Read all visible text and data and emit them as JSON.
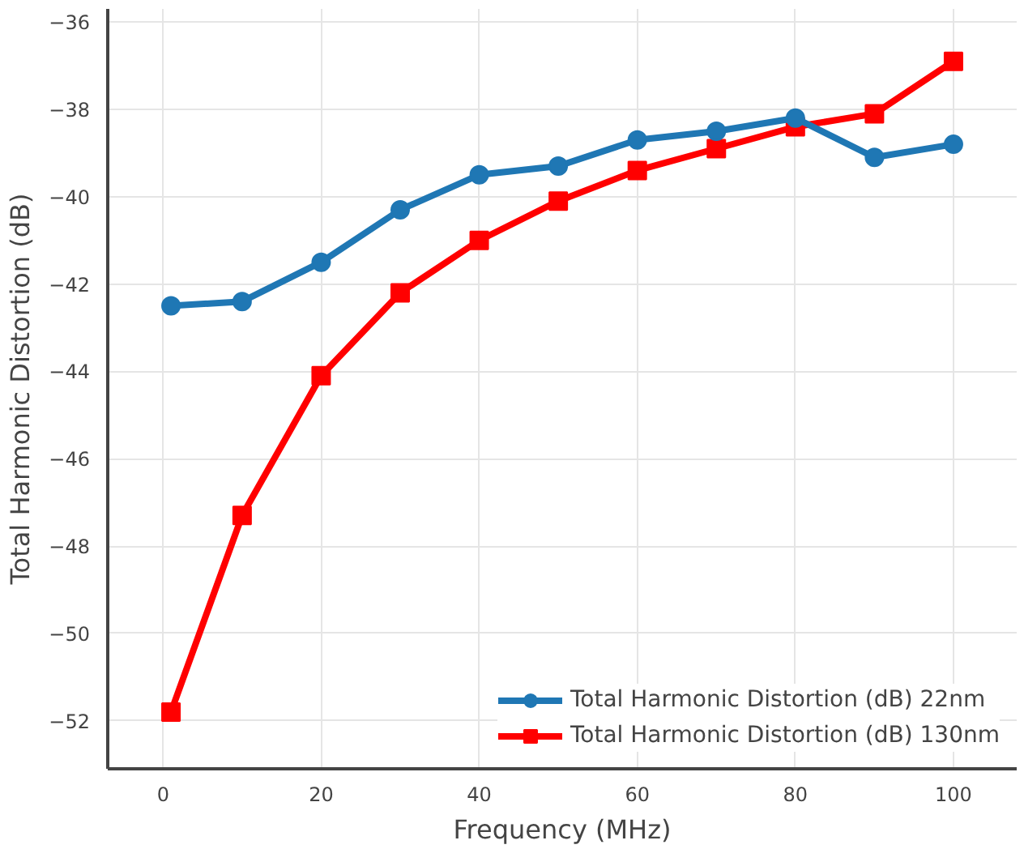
{
  "chart_data": {
    "type": "line",
    "xlabel": "Frequency (MHz)",
    "ylabel": "Total Harmonic Distortion (dB)",
    "x": [
      1,
      10,
      20,
      30,
      40,
      50,
      60,
      70,
      80,
      90,
      100
    ],
    "series": [
      {
        "name": "Total Harmonic Distortion (dB) 22nm",
        "color": "#1f77b4",
        "marker": "circle",
        "values": [
          -42.5,
          -42.4,
          -41.5,
          -40.3,
          -39.5,
          -39.3,
          -38.7,
          -38.5,
          -38.2,
          -39.1,
          -38.8
        ]
      },
      {
        "name": "Total Harmonic Distortion (dB) 130nm",
        "color": "#ff0000",
        "marker": "square",
        "values": [
          -51.8,
          -47.3,
          -44.1,
          -42.2,
          -41.0,
          -40.1,
          -39.4,
          -38.9,
          -38.4,
          -38.1,
          -36.9
        ]
      }
    ],
    "xlim": [
      -7,
      108
    ],
    "ylim": [
      -53.1,
      -35.7
    ],
    "xticks": [
      0,
      20,
      40,
      60,
      80,
      100
    ],
    "yticks": [
      -52,
      -50,
      -48,
      -46,
      -44,
      -42,
      -40,
      -38,
      -36
    ],
    "grid": true,
    "legend": "bottom right"
  }
}
